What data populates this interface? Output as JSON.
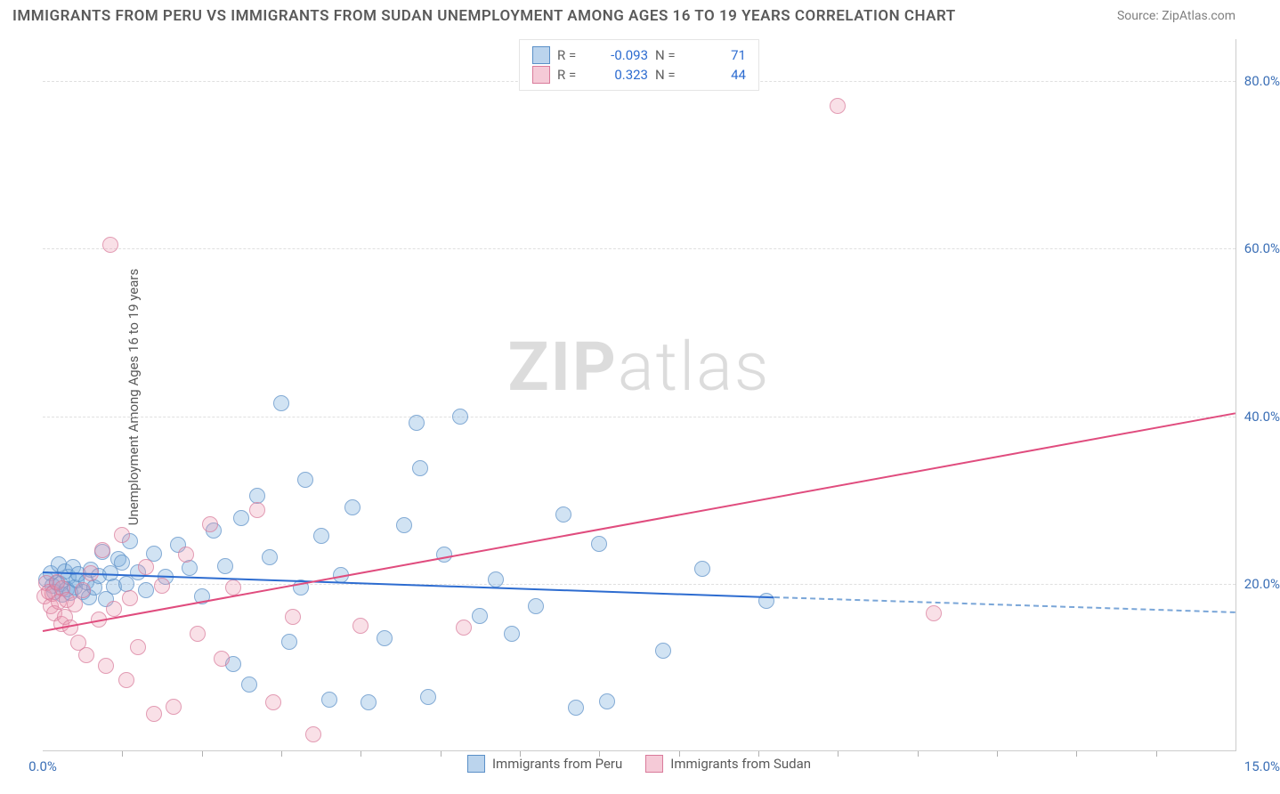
{
  "title": "IMMIGRANTS FROM PERU VS IMMIGRANTS FROM SUDAN UNEMPLOYMENT AMONG AGES 16 TO 19 YEARS CORRELATION CHART",
  "source_prefix": "Source: ",
  "source": "ZipAtlas.com",
  "ylabel": "Unemployment Among Ages 16 to 19 years",
  "watermark_a": "ZIP",
  "watermark_b": "atlas",
  "chart": {
    "type": "scatter",
    "xlim": [
      0,
      15
    ],
    "ylim": [
      0,
      85
    ],
    "x_label_min": "0.0%",
    "x_label_max": "15.0%",
    "y_ticks": [
      20,
      40,
      60,
      80
    ],
    "y_tick_labels": [
      "20.0%",
      "40.0%",
      "60.0%",
      "80.0%"
    ],
    "x_ticks_minor": [
      1,
      2,
      3,
      4,
      5,
      6,
      7,
      8,
      9,
      10,
      11,
      12,
      13,
      14
    ],
    "grid_color": "#e0e0e0",
    "axis_color": "#cccccc",
    "bg": "#ffffff",
    "marker_radius": 8,
    "title_fontsize": 17,
    "label_fontsize": 15,
    "tick_fontsize": 15,
    "series": [
      {
        "key": "peru",
        "name": "Immigrants from Peru",
        "color_fill": "rgba(120,170,220,0.45)",
        "color_stroke": "#5a8fc7",
        "R": "-0.093",
        "N": "71",
        "trend": {
          "x1": 0,
          "y1": 21.5,
          "x2": 9.2,
          "y2": 18.5,
          "color": "#2d6cd0",
          "dash_to_x": 15,
          "dash_y2": 16.7
        },
        "points": [
          [
            0.05,
            20.5
          ],
          [
            0.1,
            21.2
          ],
          [
            0.12,
            19.8
          ],
          [
            0.15,
            19.0
          ],
          [
            0.18,
            20.1
          ],
          [
            0.2,
            22.3
          ],
          [
            0.22,
            20.0
          ],
          [
            0.25,
            18.7
          ],
          [
            0.28,
            21.5
          ],
          [
            0.3,
            19.3
          ],
          [
            0.32,
            20.8
          ],
          [
            0.35,
            18.9
          ],
          [
            0.38,
            22.0
          ],
          [
            0.4,
            19.6
          ],
          [
            0.42,
            20.4
          ],
          [
            0.45,
            21.1
          ],
          [
            0.5,
            19.0
          ],
          [
            0.55,
            20.2
          ],
          [
            0.58,
            18.4
          ],
          [
            0.6,
            21.7
          ],
          [
            0.65,
            19.5
          ],
          [
            0.7,
            20.9
          ],
          [
            0.75,
            23.8
          ],
          [
            0.8,
            18.2
          ],
          [
            0.85,
            21.3
          ],
          [
            0.9,
            19.7
          ],
          [
            0.95,
            23.0
          ],
          [
            1.0,
            22.5
          ],
          [
            1.05,
            20.0
          ],
          [
            1.1,
            25.1
          ],
          [
            1.2,
            21.4
          ],
          [
            1.3,
            19.2
          ],
          [
            1.4,
            23.6
          ],
          [
            1.55,
            20.8
          ],
          [
            1.7,
            24.7
          ],
          [
            1.85,
            21.9
          ],
          [
            2.0,
            18.5
          ],
          [
            2.15,
            26.3
          ],
          [
            2.3,
            22.1
          ],
          [
            2.4,
            10.4
          ],
          [
            2.5,
            27.8
          ],
          [
            2.6,
            8.0
          ],
          [
            2.7,
            30.5
          ],
          [
            2.85,
            23.2
          ],
          [
            3.0,
            41.5
          ],
          [
            3.1,
            13.1
          ],
          [
            3.25,
            19.6
          ],
          [
            3.3,
            32.4
          ],
          [
            3.5,
            25.7
          ],
          [
            3.6,
            6.2
          ],
          [
            3.75,
            21.0
          ],
          [
            3.9,
            29.1
          ],
          [
            4.1,
            5.8
          ],
          [
            4.3,
            13.5
          ],
          [
            4.55,
            27.0
          ],
          [
            4.7,
            39.2
          ],
          [
            4.75,
            33.8
          ],
          [
            4.85,
            6.5
          ],
          [
            5.05,
            23.5
          ],
          [
            5.25,
            40.0
          ],
          [
            5.5,
            16.2
          ],
          [
            5.7,
            20.5
          ],
          [
            5.9,
            14.0
          ],
          [
            6.2,
            17.3
          ],
          [
            6.55,
            28.3
          ],
          [
            6.7,
            5.2
          ],
          [
            7.0,
            24.8
          ],
          [
            7.1,
            5.9
          ],
          [
            7.8,
            12.0
          ],
          [
            8.3,
            21.8
          ],
          [
            9.1,
            18.0
          ]
        ]
      },
      {
        "key": "sudan",
        "name": "Immigrants from Sudan",
        "color_fill": "rgba(235,150,175,0.40)",
        "color_stroke": "#d97a9a",
        "R": "0.323",
        "N": "44",
        "trend": {
          "x1": 0,
          "y1": 14.5,
          "x2": 15,
          "y2": 40.5,
          "color": "#e04c7e"
        },
        "points": [
          [
            0.02,
            18.5
          ],
          [
            0.05,
            20.1
          ],
          [
            0.08,
            19.0
          ],
          [
            0.1,
            17.3
          ],
          [
            0.12,
            18.8
          ],
          [
            0.15,
            16.5
          ],
          [
            0.18,
            20.2
          ],
          [
            0.2,
            17.9
          ],
          [
            0.23,
            15.2
          ],
          [
            0.25,
            19.4
          ],
          [
            0.28,
            16.0
          ],
          [
            0.3,
            18.1
          ],
          [
            0.35,
            14.8
          ],
          [
            0.4,
            17.5
          ],
          [
            0.45,
            13.0
          ],
          [
            0.5,
            19.2
          ],
          [
            0.55,
            11.5
          ],
          [
            0.6,
            21.3
          ],
          [
            0.7,
            15.7
          ],
          [
            0.75,
            24.0
          ],
          [
            0.8,
            10.2
          ],
          [
            0.85,
            60.5
          ],
          [
            0.9,
            17.0
          ],
          [
            1.0,
            25.8
          ],
          [
            1.05,
            8.5
          ],
          [
            1.1,
            18.3
          ],
          [
            1.2,
            12.4
          ],
          [
            1.3,
            22.0
          ],
          [
            1.4,
            4.5
          ],
          [
            1.5,
            19.8
          ],
          [
            1.65,
            5.3
          ],
          [
            1.8,
            23.5
          ],
          [
            1.95,
            14.0
          ],
          [
            2.1,
            27.1
          ],
          [
            2.25,
            11.0
          ],
          [
            2.4,
            19.5
          ],
          [
            2.7,
            28.8
          ],
          [
            2.9,
            5.8
          ],
          [
            3.15,
            16.0
          ],
          [
            3.4,
            2.0
          ],
          [
            4.0,
            15.0
          ],
          [
            5.3,
            14.8
          ],
          [
            10.0,
            77.0
          ],
          [
            11.2,
            16.5
          ]
        ]
      }
    ]
  },
  "legend_top": {
    "R_label": "R =",
    "N_label": "N ="
  },
  "colors": {
    "value_blue": "#2d6cd0",
    "text_gray": "#5a5a5a"
  }
}
